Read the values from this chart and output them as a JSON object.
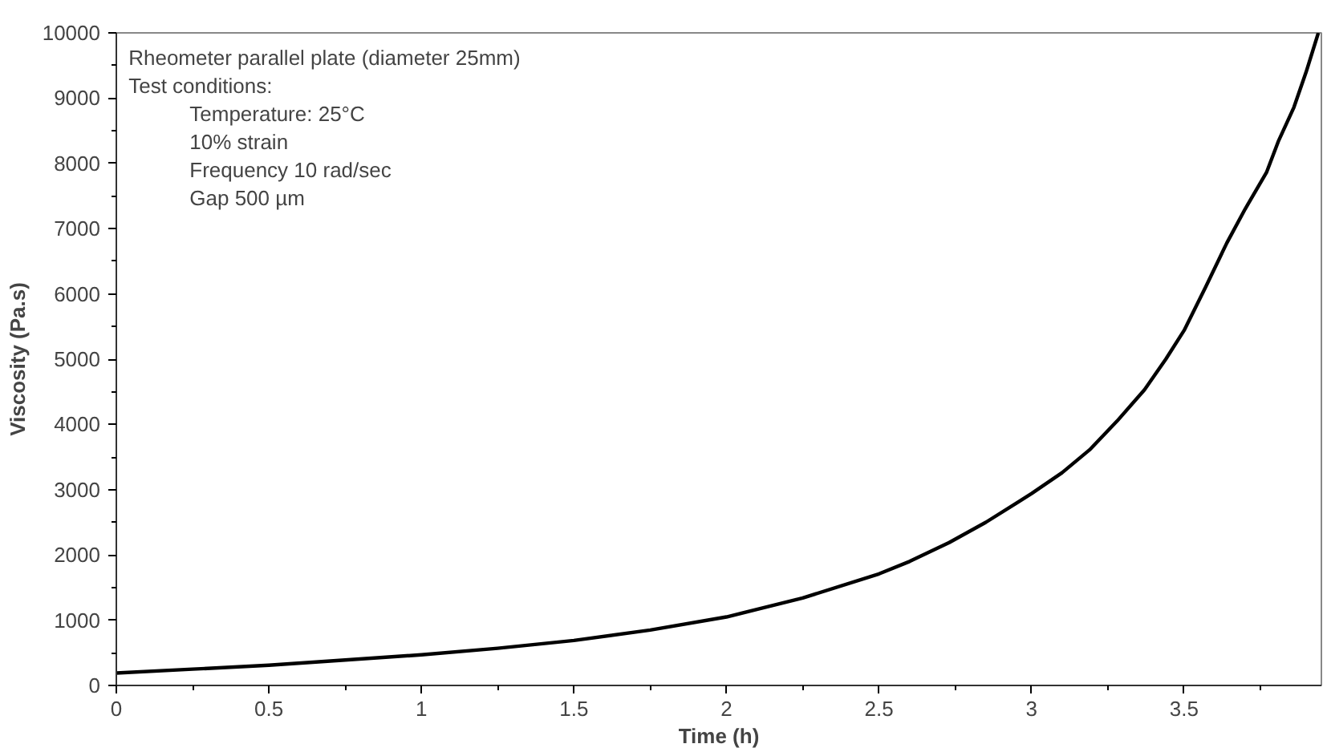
{
  "chart_data": {
    "type": "line",
    "xlabel": "Time (h)",
    "ylabel": "Viscosity (Pa.s)",
    "x": [
      0,
      0.25,
      0.5,
      0.75,
      1,
      1.25,
      1.5,
      1.75,
      2,
      2.25,
      2.5,
      2.6,
      2.73,
      2.85,
      3,
      3.1,
      3.19,
      3.28,
      3.37,
      3.44,
      3.5,
      3.57,
      3.64,
      3.7,
      3.77,
      3.81,
      3.86,
      3.9,
      3.94
    ],
    "series": [
      {
        "color": "#000000",
        "values": [
          190,
          250,
          310,
          390,
          470,
          570,
          690,
          850,
          1050,
          1340,
          1710,
          1900,
          2190,
          2500,
          2940,
          3260,
          3610,
          4050,
          4530,
          5000,
          5440,
          6100,
          6780,
          7300,
          7860,
          8350,
          8860,
          9400,
          10000
        ]
      }
    ],
    "xlim": [
      0,
      3.95
    ],
    "xticks": [
      0,
      0.5,
      1,
      1.5,
      2,
      2.5,
      3,
      3.5
    ],
    "ylim": [
      0,
      10000
    ],
    "yticks": [
      0,
      1000,
      2000,
      3000,
      4000,
      5000,
      6000,
      7000,
      8000,
      9000,
      10000
    ],
    "marker": "none",
    "line_style": "solid",
    "annotations": [
      "Rheometer parallel plate (diameter 25mm)",
      "Test conditions:",
      "Temperature: 25°C",
      "10% strain",
      "Frequency 10 rad/sec",
      "Gap 500 µm"
    ]
  }
}
